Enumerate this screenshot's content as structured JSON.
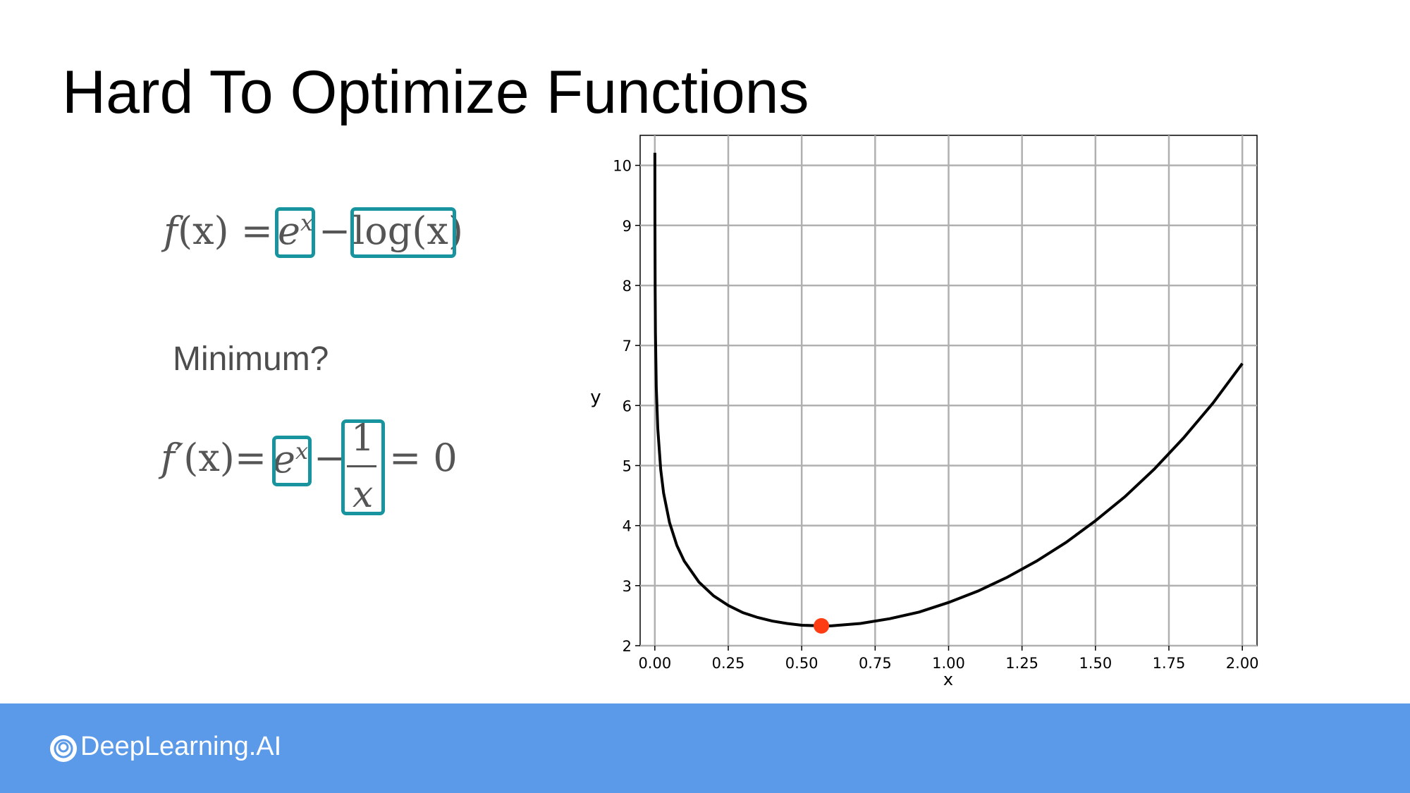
{
  "slide": {
    "title": "Hard To Optimize Functions",
    "question": "Minimum?",
    "brand": "DeepLearning.AI"
  },
  "equations": {
    "f_lhs": "f",
    "f_arg": "(x) =",
    "f_exp_base": "e",
    "f_exp_power": "x",
    "f_minus": "−",
    "f_log": "log(x)",
    "d_lhs": "f′",
    "d_arg": "(x)=",
    "d_exp_base": "e",
    "d_exp_power": "x",
    "d_minus": "−",
    "d_num": "1",
    "d_den": "x",
    "d_rhs": "= 0",
    "highlight_color": "#17949e"
  },
  "chart_data": {
    "type": "line",
    "function": "y = e^x - log(x)",
    "xlabel": "x",
    "ylabel": "y",
    "xlim": [
      -0.05,
      2.05
    ],
    "ylim": [
      2,
      10.5
    ],
    "xticks": [
      "0.00",
      "0.25",
      "0.50",
      "0.75",
      "1.00",
      "1.25",
      "1.50",
      "1.75",
      "2.00"
    ],
    "yticks": [
      "2",
      "3",
      "4",
      "5",
      "6",
      "7",
      "8",
      "9",
      "10"
    ],
    "grid": true,
    "series": [
      {
        "x": [
          4e-05,
          0.0001,
          0.0003,
          0.001,
          0.002,
          0.005,
          0.01,
          0.02,
          0.03,
          0.05,
          0.075,
          0.1,
          0.15,
          0.2,
          0.25,
          0.3,
          0.35,
          0.4,
          0.45,
          0.5,
          0.567,
          0.6,
          0.7,
          0.8,
          0.9,
          1.0,
          1.1,
          1.2,
          1.3,
          1.4,
          1.5,
          1.6,
          1.7,
          1.8,
          1.9,
          2.0
        ],
        "y": [
          11.13,
          10.21,
          9.11,
          7.91,
          7.22,
          6.3,
          5.62,
          4.93,
          4.54,
          4.05,
          3.67,
          3.41,
          3.06,
          2.83,
          2.67,
          2.55,
          2.47,
          2.41,
          2.37,
          2.34,
          2.33,
          2.33,
          2.37,
          2.45,
          2.56,
          2.72,
          2.91,
          3.14,
          3.41,
          3.72,
          4.08,
          4.48,
          4.94,
          5.46,
          6.04,
          6.7
        ],
        "color": "#000000"
      }
    ],
    "marker": {
      "x": 0.567,
      "y": 2.33,
      "color": "#ff3d14"
    }
  }
}
